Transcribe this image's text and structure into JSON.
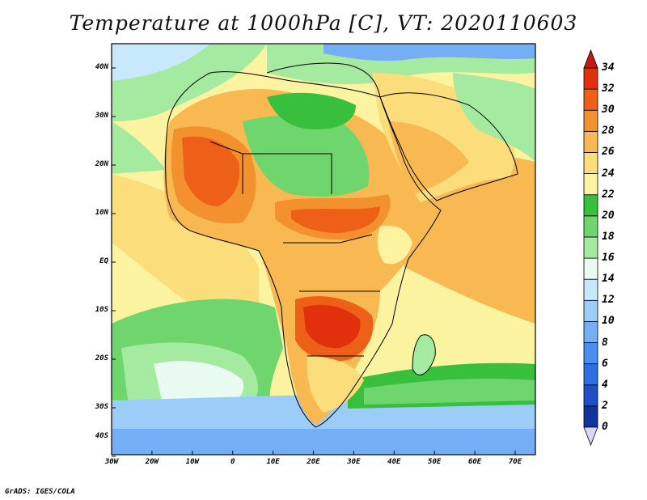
{
  "title": "Temperature at 1000hPa [C], VT: 2020110603",
  "credit": "GrADS: IGES/COLA",
  "map": {
    "variable": "Temperature at 1000hPa",
    "units": "C",
    "valid_time": "2020110603",
    "lon_range": [
      -30,
      75
    ],
    "lat_range": [
      -40,
      45
    ],
    "lat_ticks": [
      "40N",
      "30N",
      "20N",
      "10N",
      "EQ",
      "10S",
      "20S",
      "30S",
      "40S"
    ],
    "lon_ticks": [
      "30W",
      "20W",
      "10W",
      "0",
      "10E",
      "20E",
      "30E",
      "40E",
      "50E",
      "60E",
      "70E"
    ]
  },
  "colorbar": {
    "levels": [
      "0",
      "2",
      "4",
      "6",
      "8",
      "10",
      "12",
      "14",
      "16",
      "18",
      "20",
      "22",
      "24",
      "26",
      "28",
      "30",
      "32",
      "34"
    ],
    "colors": [
      "#0a1e6e",
      "#12329c",
      "#1f4fc8",
      "#2f6fe6",
      "#4a8ef0",
      "#74aff5",
      "#9cccf8",
      "#c8e8fb",
      "#e9fbf1",
      "#a4eaa0",
      "#6fd56d",
      "#38c03d",
      "#fcf3a0",
      "#fbdd7c",
      "#f8b952",
      "#f4912f",
      "#ee6018",
      "#e2300c",
      "#c81a0a"
    ]
  }
}
